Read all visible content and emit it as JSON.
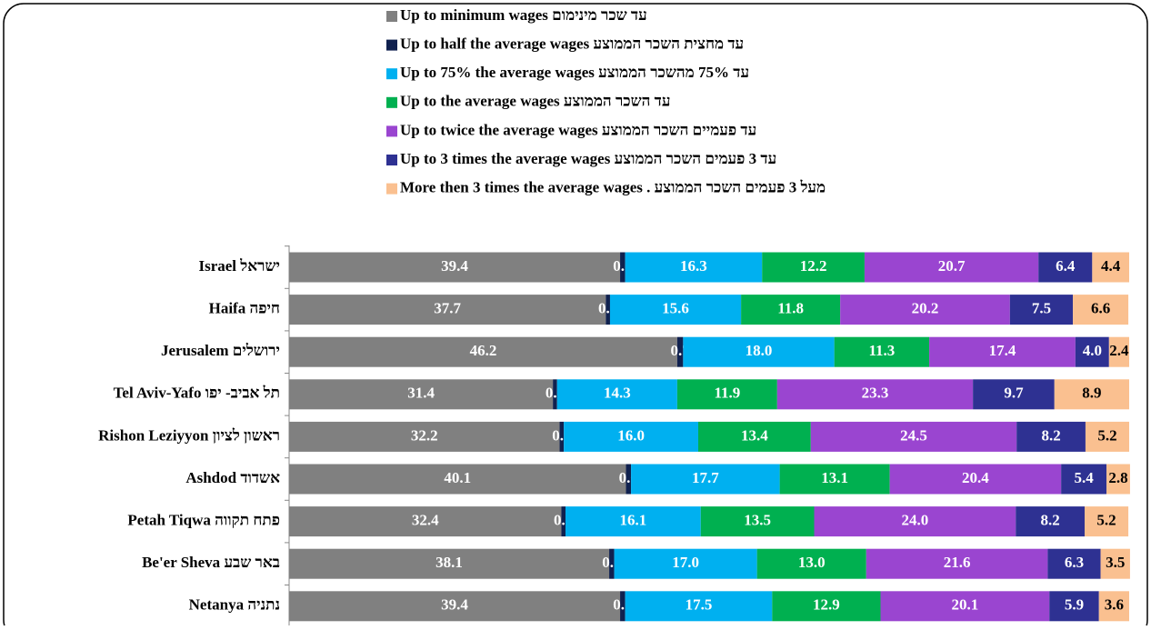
{
  "chart_data": {
    "type": "stacked-barh",
    "categories": [
      "Israel ישראל",
      "Haifa חיפה",
      "Jerusalem  ירושלים",
      "Tel Aviv-Yafo תל אביב- יפו",
      "Rishon Leziyyon ראשון לציון",
      "Ashdod אשדוד",
      "Petah Tiqwa פתח תקווה",
      "Be'er Sheva באר שבע",
      "Netanya נתניה"
    ],
    "xlim": [
      0,
      100
    ],
    "series": [
      {
        "name": "Up to minimum wages   עד שכר מינימום",
        "color": "#808080",
        "values": [
          39.4,
          37.7,
          46.2,
          31.4,
          32.2,
          40.1,
          32.4,
          38.1,
          39.4
        ],
        "value_labels": [
          "39.4",
          "37.7",
          "46.2",
          "31.4",
          "32.2",
          "40.1",
          "32.4",
          "38.1",
          "39.4"
        ]
      },
      {
        "name": "Up to half  the average wages   עד מחצית השכר הממוצע",
        "color": "#10214f",
        "values": [
          0.6,
          0.5,
          0.7,
          0.5,
          0.5,
          0.6,
          0.5,
          0.6,
          0.6
        ],
        "value_labels": [
          "0.6",
          "0.5",
          "0.7",
          "0.5",
          "0.5",
          "0.6",
          "0.5",
          "0.6",
          "0.6"
        ]
      },
      {
        "name": "Up to  75%  the average wages   עד 75% מהשכר הממוצע",
        "color": "#00b0f0",
        "values": [
          16.3,
          15.6,
          18.0,
          14.3,
          16.0,
          17.7,
          16.1,
          17.0,
          17.5
        ],
        "value_labels": [
          "16.3",
          "15.6",
          "18.0",
          "14.3",
          "16.0",
          "17.7",
          "16.1",
          "17.0",
          "17.5"
        ]
      },
      {
        "name": "Up to the average wages   עד  השכר הממוצע",
        "color": "#00b050",
        "values": [
          12.2,
          11.8,
          11.3,
          11.9,
          13.4,
          13.1,
          13.5,
          13.0,
          12.9
        ],
        "value_labels": [
          "12.2",
          "11.8",
          "11.3",
          "11.9",
          "13.4",
          "13.1",
          "13.5",
          "13.0",
          "12.9"
        ]
      },
      {
        "name": "Up to twice  the average wages   עד  פעמיים השכר הממוצע",
        "color": "#9a45d0",
        "values": [
          20.7,
          20.2,
          17.4,
          23.3,
          24.5,
          20.4,
          24.0,
          21.6,
          20.1
        ],
        "value_labels": [
          "20.7",
          "20.2",
          "17.4",
          "23.3",
          "24.5",
          "20.4",
          "24.0",
          "21.6",
          "20.1"
        ]
      },
      {
        "name": "Up to 3 times the  average wages   עד 3  פעמים השכר  הממוצע",
        "color": "#2e3192",
        "values": [
          6.4,
          7.5,
          4.0,
          9.7,
          8.2,
          5.4,
          8.2,
          6.3,
          5.9
        ],
        "value_labels": [
          "6.4",
          "7.5",
          "4.0",
          "9.7",
          "8.2",
          "5.4",
          "8.2",
          "6.3",
          "5.9"
        ]
      },
      {
        "name": "More then 3 times the  average wages .  מעל 3 פעמים השכר הממוצע",
        "color": "#fac090",
        "values": [
          4.4,
          6.6,
          2.4,
          8.9,
          5.2,
          2.8,
          5.2,
          3.5,
          3.6
        ],
        "value_labels": [
          "4.4",
          "6.6",
          "2.4",
          "8.9",
          "5.2",
          "2.8",
          "5.2",
          "3.5",
          "3.6"
        ]
      }
    ],
    "legend": "top"
  }
}
